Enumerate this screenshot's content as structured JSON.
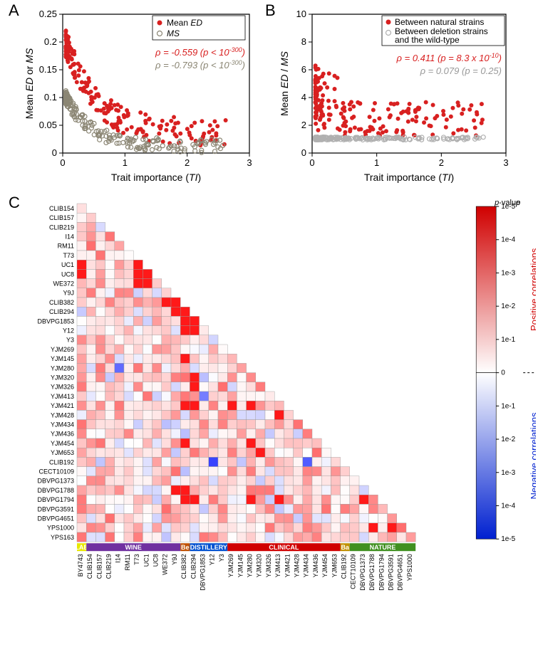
{
  "panelA": {
    "label": "A",
    "type": "scatter",
    "xlabel": "Trait importance (TI)",
    "ylabel": "Mean ED or MS",
    "xlim": [
      0,
      3
    ],
    "ylim": [
      0,
      0.25
    ],
    "xticks": [
      0,
      1,
      2,
      3
    ],
    "yticks": [
      0,
      0.05,
      0.1,
      0.15,
      0.2,
      0.25
    ],
    "colors": {
      "red": "#d82020",
      "gray": "#8b8674"
    },
    "legend": [
      {
        "label": "Mean ED",
        "color": "#d82020",
        "filled": true,
        "italic_part": "ED"
      },
      {
        "label": "MS",
        "color": "#8b8674",
        "filled": false,
        "italic_part": "MS"
      }
    ],
    "correlations": [
      {
        "text": "ρ = -0.559 (p < 10⁻³⁰⁰)",
        "color": "#d82020"
      },
      {
        "text": "ρ = -0.793 (p < 10⁻³⁰⁰)",
        "color": "#8b8674"
      }
    ],
    "label_fontsize": 14,
    "tick_fontsize": 13
  },
  "panelB": {
    "label": "B",
    "type": "scatter",
    "xlabel": "Trait importance (TI)",
    "ylabel": "Mean ED / MS",
    "xlim": [
      0,
      3
    ],
    "ylim": [
      0,
      10
    ],
    "xticks": [
      0,
      1,
      2,
      3
    ],
    "yticks": [
      0,
      2,
      4,
      6,
      8,
      10
    ],
    "colors": {
      "red": "#d82020",
      "gray": "#b0b0b0"
    },
    "legend": [
      {
        "label": "Between natural strains",
        "color": "#d82020",
        "filled": true
      },
      {
        "label_line1": "Between deletion strains",
        "label_line2": "and the wild-type",
        "color": "#b0b0b0",
        "filled": false
      }
    ],
    "correlations": [
      {
        "text": "ρ = 0.411 (p = 8.3 x 10⁻¹⁰)",
        "color": "#d82020"
      },
      {
        "text": "ρ = 0.079 (p = 0.25)",
        "color": "#999999"
      }
    ]
  },
  "panelC": {
    "label": "C",
    "type": "heatmap",
    "strains_y": [
      "CLIB154",
      "CLIB157",
      "CLIB219",
      "I14",
      "RM11",
      "T73",
      "UC1",
      "UC8",
      "WE372",
      "Y9J",
      "CLIB382",
      "CLIB294",
      "DBVPG1853",
      "Y12",
      "Y3",
      "YJM269",
      "YJM145",
      "YJM280",
      "YJM320",
      "YJM326",
      "YJM413",
      "YJM421",
      "YJM428",
      "YJM434",
      "YJM436",
      "YJM454",
      "YJM653",
      "CLIB192",
      "CECT10109",
      "DBVPG1373",
      "DBVPG1788",
      "DBVPG1794",
      "DBVPG3591",
      "DBVPG4651",
      "YPS1000",
      "YPS163"
    ],
    "strains_x": [
      "BY4743",
      "CLIB154",
      "CLIB157",
      "CLIB219",
      "I14",
      "RM11",
      "T73",
      "UC1",
      "UC8",
      "WE372",
      "Y9J",
      "CLIB382",
      "CLIB294",
      "DBVPG1853",
      "Y12",
      "Y3",
      "YJM269",
      "YJM145",
      "YJM280",
      "YJM320",
      "YJM326",
      "YJM413",
      "YJM421",
      "YJM428",
      "YJM434",
      "YJM436",
      "YJM454",
      "YJM653",
      "CLIB192",
      "CECT10109",
      "DBVPG1373",
      "DBVPG1788",
      "DBVPG1794",
      "DBVPG3591",
      "DBVPG4651",
      "YPS1000"
    ],
    "categories": [
      {
        "name": "LAB",
        "color": "#e8e800",
        "text_color": "#000",
        "start": 0,
        "end": 1
      },
      {
        "name": "WINE",
        "color": "#7030a0",
        "text_color": "#fff",
        "start": 1,
        "end": 11
      },
      {
        "name": "Be",
        "color": "#c05000",
        "text_color": "#fff",
        "start": 11,
        "end": 12
      },
      {
        "name": "DISTILLERY",
        "color": "#0050d0",
        "text_color": "#fff",
        "start": 12,
        "end": 16
      },
      {
        "name": "CLINICAL",
        "color": "#d00000",
        "text_color": "#fff",
        "start": 16,
        "end": 28
      },
      {
        "name": "Ba",
        "color": "#c09000",
        "text_color": "#fff",
        "start": 28,
        "end": 29
      },
      {
        "name": "NATURE",
        "color": "#409020",
        "text_color": "#fff",
        "start": 29,
        "end": 36
      }
    ],
    "colorbar": {
      "title": "p-value",
      "pos_color_max": "#d00000",
      "pos_color_min": "#ffffff",
      "neg_color_min": "#ffffff",
      "neg_color_max": "#0020d0",
      "ticks": [
        "1e-5",
        "1e-4",
        "1e-3",
        "1e-2",
        "1e-1",
        "0",
        "1e-1",
        "1e-2",
        "1e-3",
        "1e-4",
        "1e-5"
      ],
      "pos_label": "Positive correlations",
      "neg_label": "Negative correlations"
    },
    "cell_border_color": "#999999"
  }
}
